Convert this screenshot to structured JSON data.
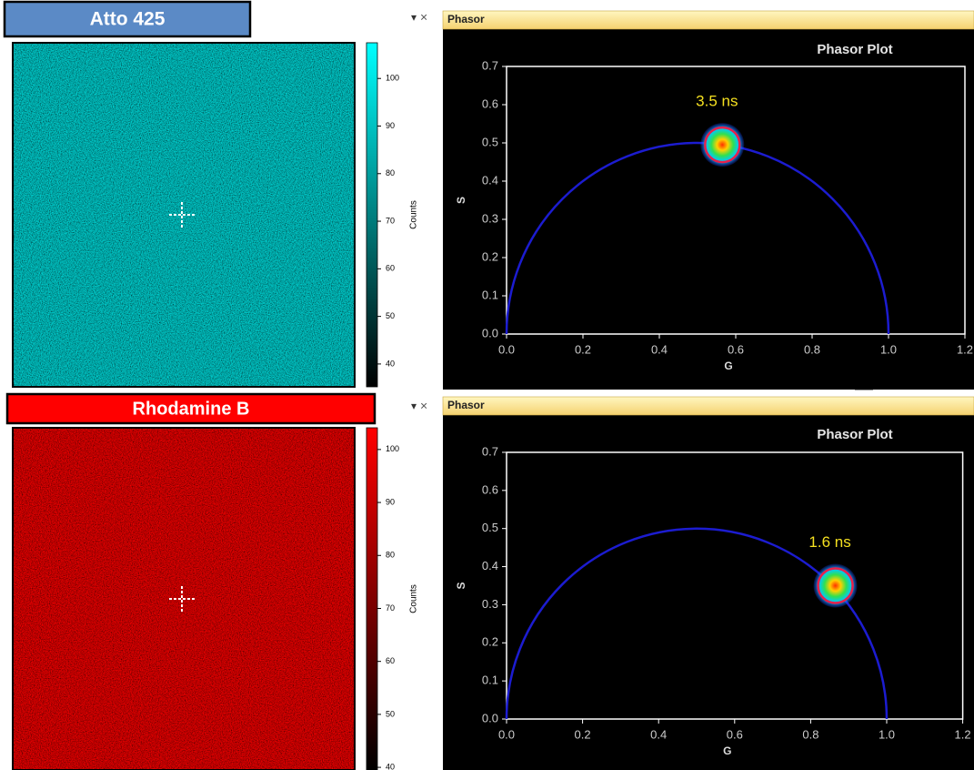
{
  "panels": [
    {
      "image_title": "Atto 425",
      "title_background": "#5b8ac6",
      "window_title": "Phasor",
      "colorbar": {
        "label": "Counts",
        "color": "#00ffff",
        "lim": [
          35.2,
          107.5
        ],
        "ticks": [
          100,
          90,
          80,
          70,
          60,
          50,
          40
        ]
      },
      "chart_data": {
        "type": "scatter",
        "title": "Phasor Plot",
        "x_label": "G",
        "y_label": "S",
        "xlim": [
          0,
          1.2
        ],
        "ylim": [
          0,
          0.7
        ],
        "xticks": [
          {
            "value": 0,
            "label": "0.0"
          },
          0.2,
          0.4,
          0.6,
          0.8,
          {
            "value": 1,
            "label": "1.0"
          },
          1.2
        ],
        "yticks": [
          {
            "value": 0,
            "label": "0.0"
          },
          0.1,
          0.2,
          0.3,
          0.4,
          0.5,
          0.6,
          0.7
        ],
        "x": [
          0.565
        ],
        "values": [
          0.495
        ],
        "annotation": "3.5 ns",
        "marker_color": "#e8204a",
        "reference_circle": {
          "center": 0.5,
          "radius": 0.5,
          "color": "#1c1cd0"
        }
      }
    },
    {
      "image_title": "Rhodamine B",
      "title_background": "#ff0000",
      "window_title": "Phasor",
      "colorbar": {
        "label": "Counts",
        "color": "#ff0000",
        "lim": [
          39.5,
          104.1
        ],
        "ticks": [
          100,
          90,
          80,
          70,
          60,
          50,
          40
        ]
      },
      "chart_data": {
        "type": "scatter",
        "title": "Phasor Plot",
        "x_label": "G",
        "y_label": "S",
        "xlim": [
          0,
          1.2
        ],
        "ylim": [
          0,
          0.7
        ],
        "xticks": [
          {
            "value": 0,
            "label": "0.0"
          },
          0.2,
          0.4,
          0.6,
          0.8,
          {
            "value": 1,
            "label": "1.0"
          },
          1.2
        ],
        "yticks": [
          {
            "value": 0,
            "label": "0.0"
          },
          0.1,
          0.2,
          0.3,
          0.4,
          0.5,
          0.6,
          0.7
        ],
        "x": [
          0.865
        ],
        "values": [
          0.35
        ],
        "annotation": "1.6 ns",
        "marker_color": "#e8204a",
        "reference_circle": {
          "center": 0.5,
          "radius": 0.5,
          "color": "#1c1cd0"
        }
      }
    }
  ]
}
